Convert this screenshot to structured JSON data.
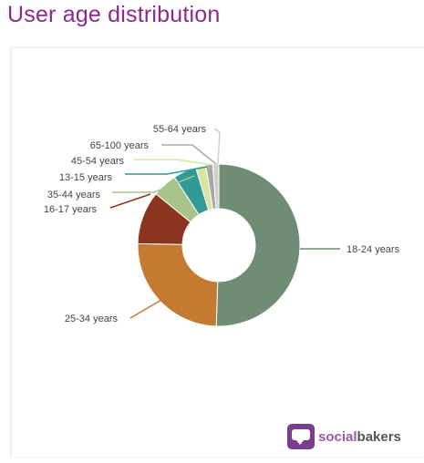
{
  "page": {
    "title": "User age distribution"
  },
  "brand": {
    "social": "social",
    "bakers": "bakers"
  },
  "chart_data": {
    "type": "pie",
    "donut": true,
    "categories": [
      "18-24 years",
      "25-34 years",
      "16-17 years",
      "35-44 years",
      "13-15 years",
      "45-54 years",
      "65-100 years",
      "55-64 years"
    ],
    "values": [
      50.5,
      24.8,
      10.6,
      4.9,
      4.6,
      2.0,
      1.4,
      1.2
    ],
    "colors": [
      "#6f8c75",
      "#c47a30",
      "#8b3520",
      "#a8c48a",
      "#2f9a96",
      "#d9e4a0",
      "#a8a8a8",
      "#cfcfcf"
    ],
    "legend": "none",
    "title": ""
  }
}
